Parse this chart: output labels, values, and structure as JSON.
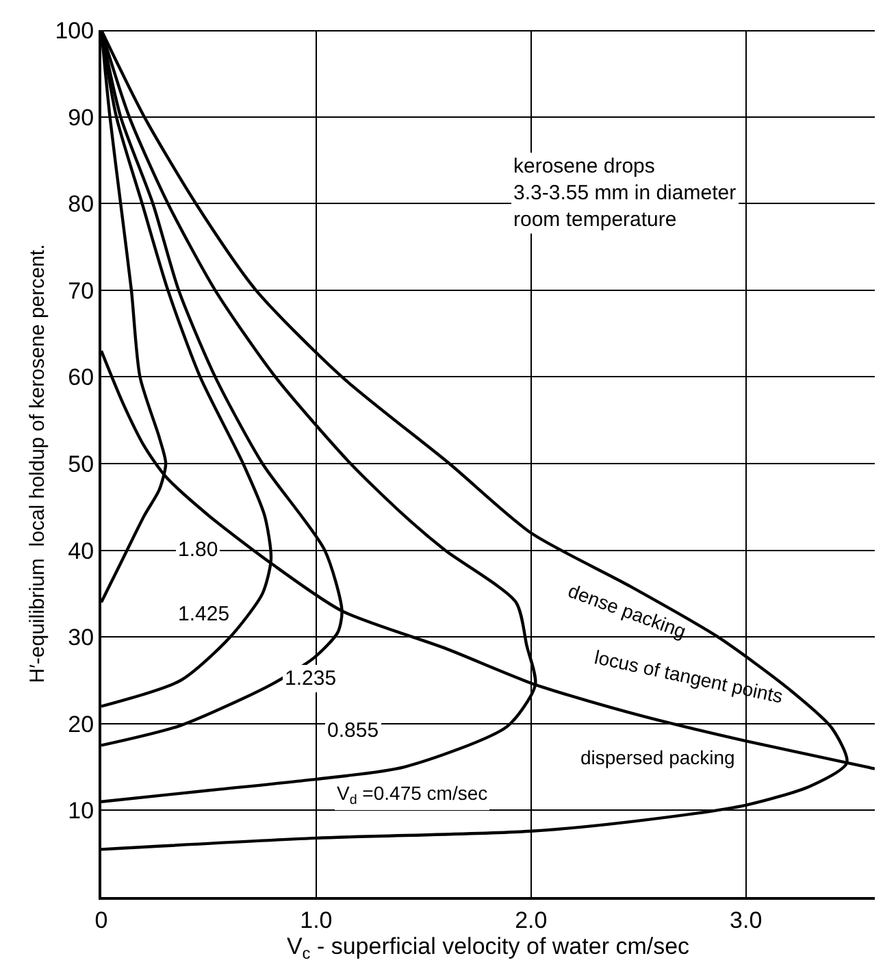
{
  "chart_data": {
    "type": "line",
    "xlabel": "V$_{c}$ - superficial velocity of water cm/sec",
    "ylabel": "H′-equilibrium  local holdup of kerosene percent.",
    "xlim": [
      0,
      3.6
    ],
    "ylim": [
      0,
      100
    ],
    "xticks": [
      {
        "value": 0,
        "label": "0"
      },
      {
        "value": 1,
        "label": "1.0"
      },
      {
        "value": 2,
        "label": "2.0"
      },
      {
        "value": 3,
        "label": "3.0"
      }
    ],
    "yticks": [
      10,
      20,
      30,
      40,
      50,
      60,
      70,
      80,
      90,
      100
    ],
    "grid": true,
    "marker": "none",
    "line_style": "solid",
    "series": [
      {
        "color": "#000000",
        "x": [
          0,
          0.1,
          0.2,
          0.27,
          0.3,
          0.27,
          0.18,
          0.14,
          0.09,
          0.04,
          0
        ],
        "values": [
          34,
          39,
          44,
          47,
          50,
          53,
          60,
          70,
          80,
          90,
          100
        ]
      },
      {
        "color": "#000000",
        "x": [
          0,
          0.37,
          0.6,
          0.75,
          0.79,
          0.76,
          0.66,
          0.46,
          0.31,
          0.19,
          0.07,
          0
        ],
        "values": [
          22,
          25,
          30,
          35,
          39,
          44,
          50,
          60,
          70,
          80,
          90,
          100
        ]
      },
      {
        "color": "#000000",
        "x": [
          0,
          0.37,
          0.79,
          0.99,
          1.1,
          1.12,
          1.04,
          0.75,
          0.53,
          0.36,
          0.24,
          0.09,
          0
        ],
        "values": [
          17.5,
          19.8,
          24.5,
          27.6,
          30.5,
          33,
          40,
          50,
          60,
          70,
          80,
          90,
          100
        ]
      },
      {
        "color": "#000000",
        "x": [
          0,
          0.5,
          1.0,
          1.41,
          1.89,
          2.02,
          1.98,
          1.93,
          1.6,
          1.41,
          1.16,
          0.81,
          0.53,
          0.31,
          0.13,
          0
        ],
        "values": [
          11,
          12.3,
          13.6,
          15,
          19.7,
          24.5,
          29,
          34,
          40,
          44,
          50,
          60,
          70,
          80,
          90,
          100
        ]
      },
      {
        "color": "#000000",
        "x": [
          0,
          1.0,
          2.0,
          2.5,
          3.0,
          3.3,
          3.47,
          3.4,
          3.2,
          2.87,
          2.45,
          2.0,
          1.62,
          1.12,
          0.72,
          0.44,
          0.2,
          0
        ],
        "values": [
          5.5,
          6.8,
          7.6,
          8.8,
          10.6,
          12.8,
          15.5,
          19.5,
          24,
          30,
          36,
          42,
          50,
          60,
          70,
          80,
          90,
          100
        ]
      },
      {
        "color": "#000000",
        "x": [
          0,
          0.1,
          0.2,
          0.3,
          0.5,
          0.79,
          1.12,
          1.6,
          2.02,
          2.5,
          3.0,
          3.47,
          3.6
        ],
        "values": [
          63,
          57,
          52,
          48.5,
          44,
          38.5,
          33,
          28.7,
          24.5,
          21,
          18,
          15.5,
          14.8
        ]
      }
    ],
    "annotations": [
      "kerosene drops\n3.3-3.55 mm in diameter\nroom temperature",
      "1.80",
      "1.425",
      "1.235",
      "0.855",
      "V$_{d}$ =0.475 cm/sec",
      "dense packing",
      "locus of tangent points",
      "dispersed packing"
    ]
  }
}
